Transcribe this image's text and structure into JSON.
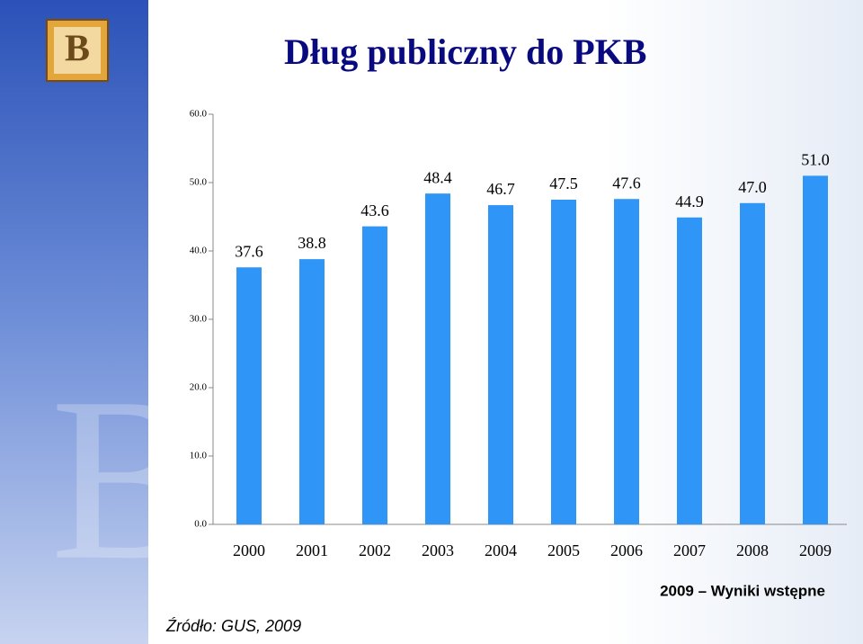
{
  "chart_data": {
    "type": "bar",
    "title": "Dług publiczny do PKB",
    "categories": [
      "2000",
      "2001",
      "2002",
      "2003",
      "2004",
      "2005",
      "2006",
      "2007",
      "2008",
      "2009"
    ],
    "values": [
      37.6,
      38.8,
      43.6,
      48.4,
      46.7,
      47.5,
      47.6,
      44.9,
      47.0,
      51.0
    ],
    "value_labels": [
      "37.6",
      "38.8",
      "43.6",
      "48.4",
      "46.7",
      "47.5",
      "47.6",
      "44.9",
      "47.0",
      "51.0"
    ],
    "color": "#2f95f7",
    "ylim": [
      0,
      60
    ],
    "yticks": [
      {
        "value": 0,
        "label": "0.0"
      },
      {
        "value": 10,
        "label": "10.0"
      },
      {
        "value": 20,
        "label": "20.0"
      },
      {
        "value": 30,
        "label": "30.0"
      },
      {
        "value": 40,
        "label": "40.0"
      },
      {
        "value": 50,
        "label": "50.0"
      },
      {
        "value": 60,
        "label": "60.0"
      }
    ],
    "grid": false,
    "note": "2009 – Wyniki wstępne",
    "source": "Źródło: GUS, 2009"
  }
}
